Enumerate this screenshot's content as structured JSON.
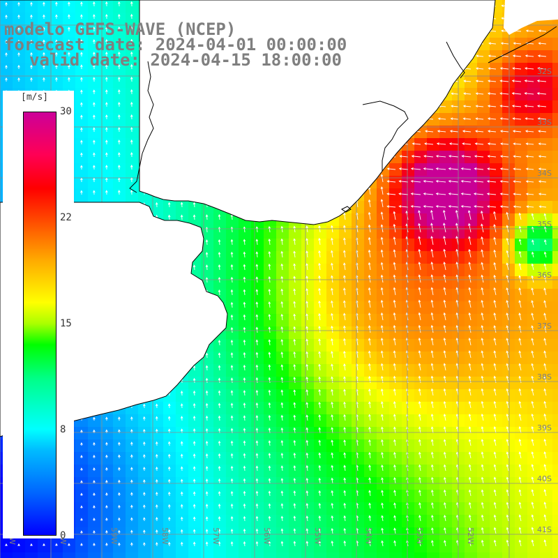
{
  "header": {
    "line1": "modelo GEFS-WAVE (NCEP)",
    "line2": "forecast date: 2024-04-01 00:00:00",
    "line3": "valid date: 2024-04-15 18:00:00"
  },
  "colorbar": {
    "unit": "[m/s]",
    "ticks": [
      "30",
      "22",
      "15",
      "8",
      "0"
    ]
  },
  "lat_labels": [
    "32S",
    "33S",
    "34S",
    "35S",
    "36S",
    "37S",
    "38S",
    "39S",
    "40S",
    "41S"
  ],
  "lon_labels": [
    "61W",
    "60W",
    "59W",
    "58W",
    "57W",
    "56W",
    "55W",
    "54W",
    "53W",
    "52W"
  ],
  "colors": {
    "land": "#ffffff",
    "grid": "#8c8c8c",
    "coast": "#000000",
    "text": "#7f7f7f",
    "arrow": "#ffffff"
  }
}
